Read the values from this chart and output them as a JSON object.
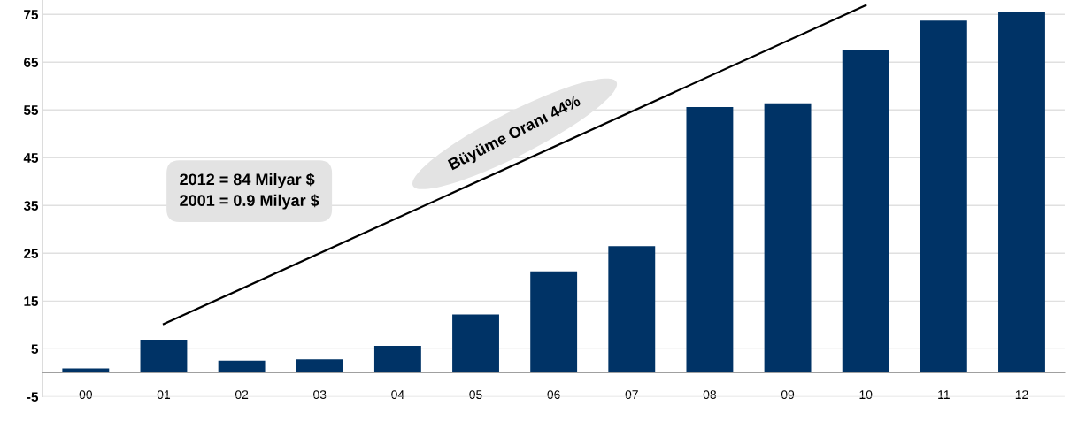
{
  "chart_data": {
    "type": "bar",
    "categories": [
      "00",
      "01",
      "02",
      "03",
      "04",
      "05",
      "06",
      "07",
      "08",
      "09",
      "10",
      "11",
      "12"
    ],
    "series": [
      {
        "color": "#003366",
        "values": [
          0.9,
          6.9,
          2.5,
          2.8,
          5.6,
          12.2,
          21.2,
          26.5,
          55.6,
          56.4,
          67.5,
          73.7,
          75.5
        ]
      },
      {
        "type": "line",
        "color": "#000000",
        "x": [
          "01",
          "10"
        ],
        "values": [
          10.2,
          76.9
        ]
      }
    ],
    "ylim": [
      -5,
      78
    ],
    "yticks": [
      -5,
      5,
      15,
      25,
      35,
      45,
      55,
      65,
      75
    ],
    "grid": "y",
    "legend": false,
    "annotations": [
      "2012 = 84 Milyar $\n2001 = 0.9 Milyar $",
      "Büyüme Oranı 44%"
    ]
  }
}
